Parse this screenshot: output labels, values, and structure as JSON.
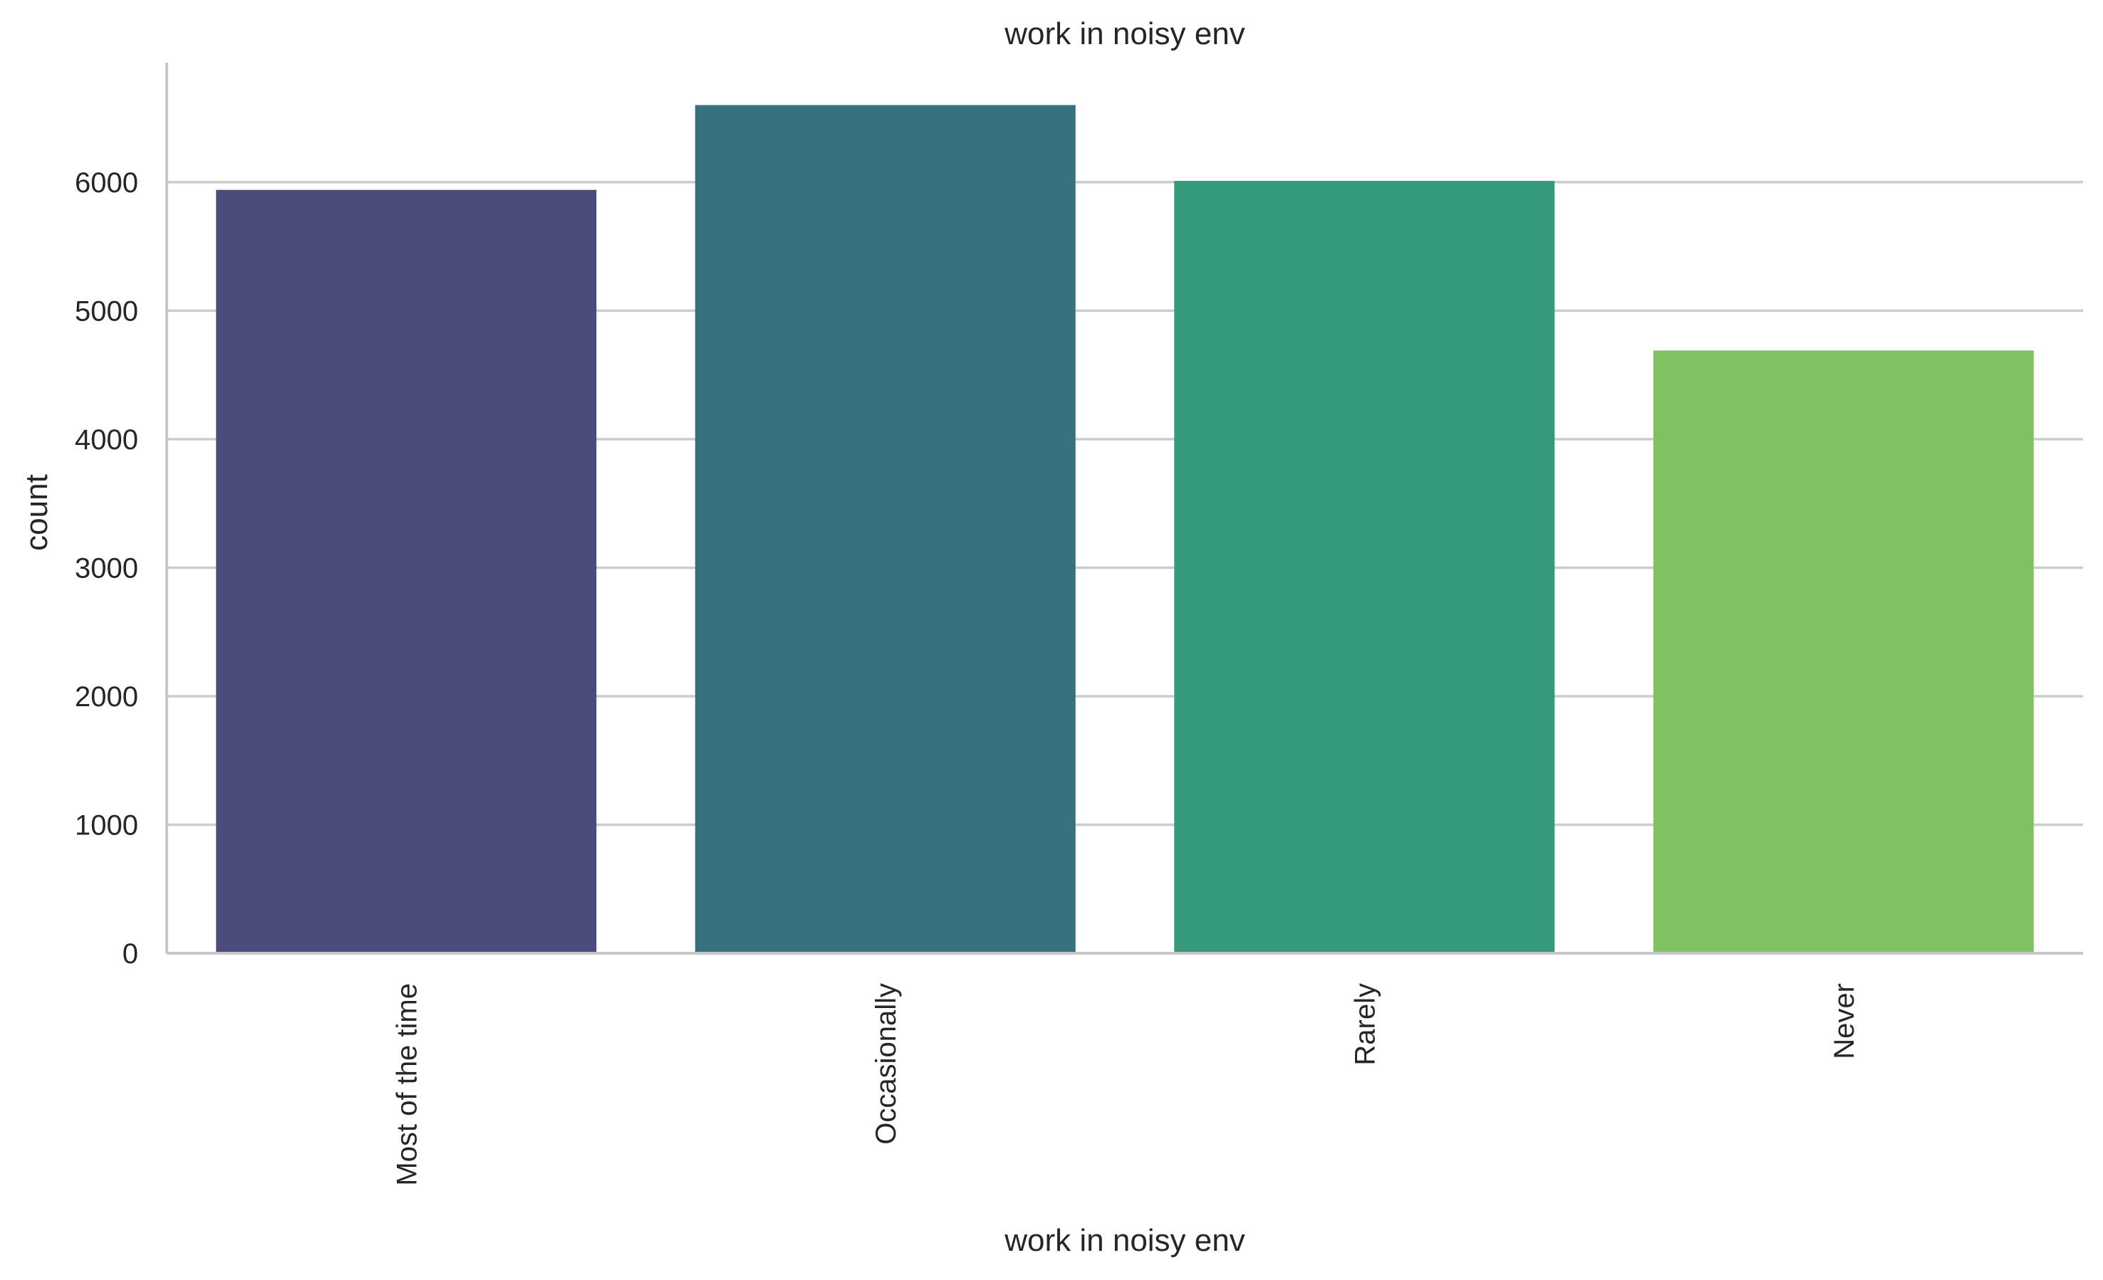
{
  "chart_data": {
    "type": "bar",
    "title": "work in noisy env",
    "xlabel": "work in noisy env",
    "ylabel": "count",
    "categories": [
      "Most of the time",
      "Occasionally",
      "Rarely",
      "Never"
    ],
    "values": [
      5940,
      6600,
      6010,
      4690
    ],
    "colors": [
      "#4a4c7c",
      "#377180",
      "#359a7c",
      "#80c162"
    ],
    "yticks": [
      0,
      1000,
      2000,
      3000,
      4000,
      5000,
      6000
    ],
    "ylim": [
      0,
      6930
    ],
    "grid": "y",
    "legend": "none",
    "xtick_rotation": -90
  }
}
